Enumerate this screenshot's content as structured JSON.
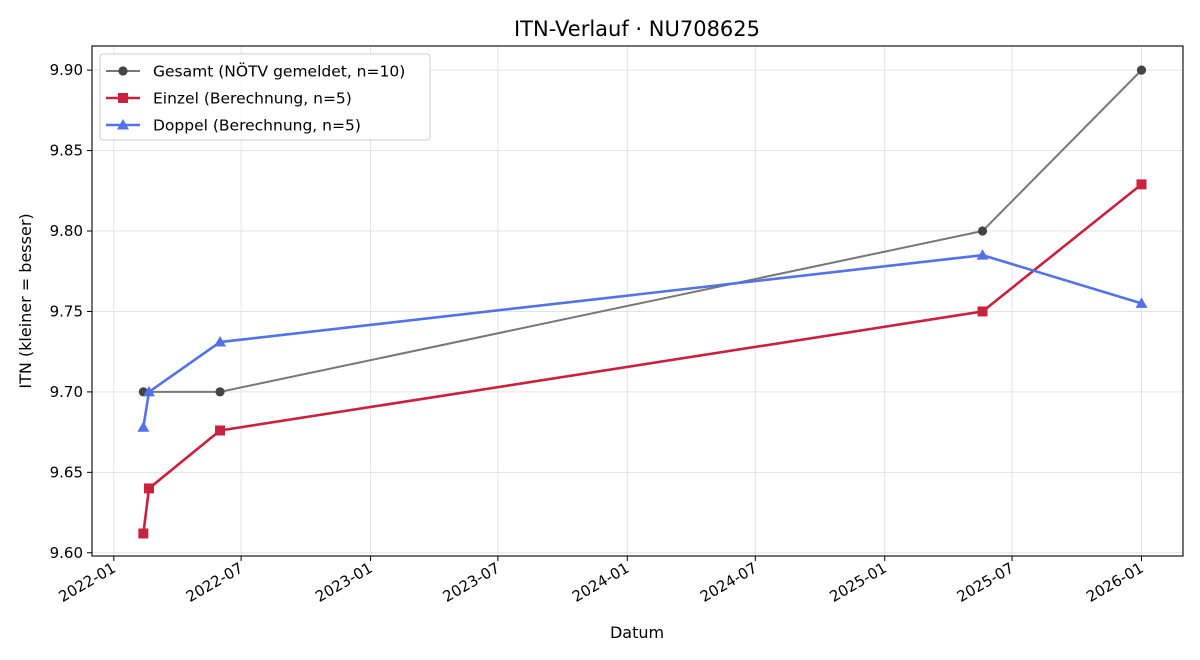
{
  "chart_data": {
    "type": "line",
    "title": "ITN-Verlauf · NU708625",
    "xlabel": "Datum",
    "ylabel": "ITN  (kleiner = besser)",
    "xlim": [
      "2021-12-01",
      "2026-03-01"
    ],
    "ylim": [
      9.598,
      9.915
    ],
    "x_ticks": [
      "2022-01",
      "2022-07",
      "2023-01",
      "2023-07",
      "2024-01",
      "2024-07",
      "2025-01",
      "2025-07",
      "2026-01"
    ],
    "y_ticks": [
      "9.60",
      "9.65",
      "9.70",
      "9.75",
      "9.80",
      "9.85",
      "9.90"
    ],
    "grid": true,
    "legend_position": "top-left",
    "series": [
      {
        "name": "Gesamt (NÖTV gemeldet, n=10)",
        "color": "#777777",
        "marker_color": "#444444",
        "marker": "circle",
        "points": [
          {
            "x": "2022-02-12",
            "y": 9.7
          },
          {
            "x": "2022-06-01",
            "y": 9.7
          },
          {
            "x": "2025-05-20",
            "y": 9.8
          },
          {
            "x": "2026-01-01",
            "y": 9.9
          }
        ]
      },
      {
        "name": "Einzel (Berechnung, n=5)",
        "color": "#c8223f",
        "marker_color": "#c8223f",
        "marker": "square",
        "points": [
          {
            "x": "2022-02-12",
            "y": 9.612
          },
          {
            "x": "2022-02-20",
            "y": 9.64
          },
          {
            "x": "2022-06-01",
            "y": 9.676
          },
          {
            "x": "2025-05-20",
            "y": 9.75
          },
          {
            "x": "2026-01-01",
            "y": 9.829
          }
        ]
      },
      {
        "name": "Doppel (Berechnung, n=5)",
        "color": "#5472e8",
        "marker_color": "#5472e8",
        "marker": "triangle",
        "points": [
          {
            "x": "2022-02-12",
            "y": 9.678
          },
          {
            "x": "2022-02-20",
            "y": 9.7
          },
          {
            "x": "2022-06-01",
            "y": 9.731
          },
          {
            "x": "2025-05-20",
            "y": 9.785
          },
          {
            "x": "2026-01-01",
            "y": 9.755
          }
        ]
      }
    ]
  }
}
